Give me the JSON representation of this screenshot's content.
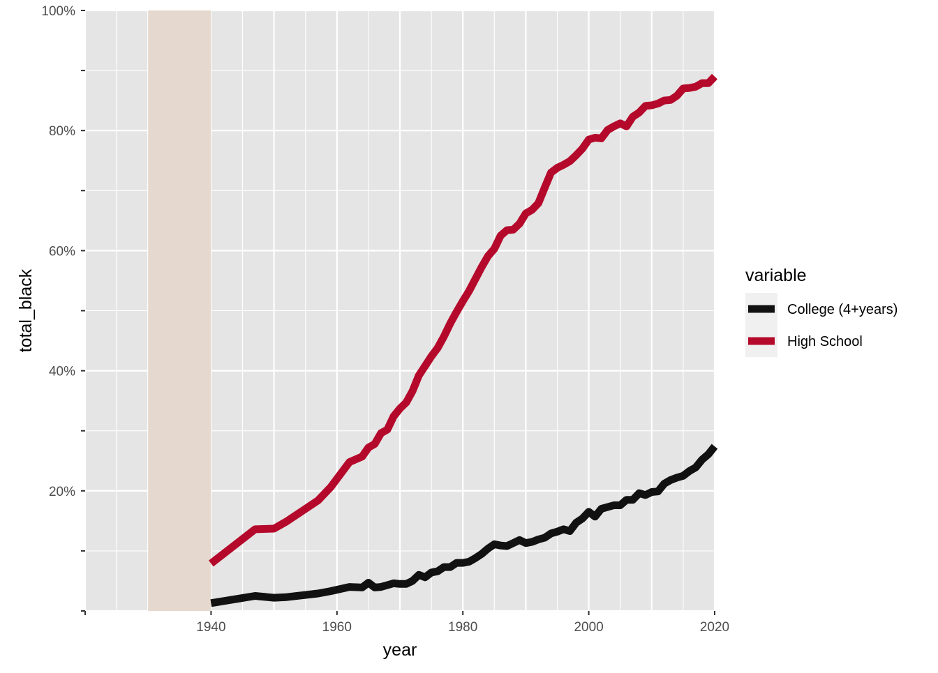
{
  "chart_data": {
    "type": "line",
    "xlabel": "year",
    "ylabel": "total_black",
    "xlim": [
      1920,
      2020
    ],
    "ylim": [
      0,
      100
    ],
    "x_ticks": [
      1940,
      1960,
      1980,
      2000,
      2020
    ],
    "y_ticks": [
      20,
      40,
      60,
      80,
      100
    ],
    "y_tick_labels": [
      "20%",
      "40%",
      "60%",
      "80%",
      "100%"
    ],
    "grid": true,
    "shaded_region": {
      "x_start": 1930,
      "x_end": 1940,
      "color": "#e5d9cf"
    },
    "legend": {
      "title": "variable",
      "placement": "right",
      "entries": [
        "College (4+years)",
        "High School"
      ]
    },
    "series": [
      {
        "name": "College (4+years)",
        "color": "#111111",
        "x": [
          1940,
          1947,
          1950,
          1952,
          1957,
          1959,
          1962,
          1964,
          1965,
          1966,
          1967,
          1968,
          1969,
          1970,
          1971,
          1972,
          1973,
          1974,
          1975,
          1976,
          1977,
          1978,
          1979,
          1980,
          1981,
          1982,
          1983,
          1984,
          1985,
          1986,
          1987,
          1988,
          1989,
          1990,
          1991,
          1992,
          1993,
          1994,
          1995,
          1996,
          1997,
          1998,
          1999,
          2000,
          2001,
          2002,
          2003,
          2004,
          2005,
          2006,
          2007,
          2008,
          2009,
          2010,
          2011,
          2012,
          2013,
          2014,
          2015,
          2016,
          2017,
          2018,
          2019,
          2020
        ],
        "y": [
          1.3,
          2.5,
          2.2,
          2.3,
          2.9,
          3.3,
          4.0,
          3.9,
          4.7,
          3.9,
          4.0,
          4.3,
          4.6,
          4.5,
          4.5,
          5.0,
          6.0,
          5.6,
          6.4,
          6.6,
          7.3,
          7.3,
          8.0,
          8.0,
          8.2,
          8.8,
          9.5,
          10.4,
          11.1,
          10.9,
          10.8,
          11.3,
          11.8,
          11.3,
          11.5,
          11.9,
          12.2,
          12.9,
          13.2,
          13.6,
          13.3,
          14.7,
          15.4,
          16.5,
          15.7,
          17.0,
          17.3,
          17.6,
          17.6,
          18.5,
          18.5,
          19.6,
          19.3,
          19.8,
          19.9,
          21.2,
          21.8,
          22.2,
          22.5,
          23.3,
          23.9,
          25.2,
          26.1,
          27.4
        ]
      },
      {
        "name": "High School",
        "color": "#b5092b",
        "x": [
          1940,
          1947,
          1950,
          1952,
          1957,
          1959,
          1962,
          1964,
          1965,
          1966,
          1967,
          1968,
          1969,
          1970,
          1971,
          1972,
          1973,
          1974,
          1975,
          1976,
          1977,
          1978,
          1979,
          1980,
          1981,
          1982,
          1983,
          1984,
          1985,
          1986,
          1987,
          1988,
          1989,
          1990,
          1991,
          1992,
          1993,
          1994,
          1995,
          1996,
          1997,
          1998,
          1999,
          2000,
          2001,
          2002,
          2003,
          2004,
          2005,
          2006,
          2007,
          2008,
          2009,
          2010,
          2011,
          2012,
          2013,
          2014,
          2015,
          2016,
          2017,
          2018,
          2019,
          2020
        ],
        "y": [
          7.9,
          13.6,
          13.7,
          14.9,
          18.4,
          20.6,
          24.8,
          25.7,
          27.2,
          27.8,
          29.6,
          30.2,
          32.4,
          33.7,
          34.7,
          36.6,
          39.2,
          40.8,
          42.4,
          43.8,
          45.7,
          47.9,
          49.8,
          51.6,
          53.3,
          55.3,
          57.3,
          59.1,
          60.3,
          62.5,
          63.4,
          63.5,
          64.5,
          66.2,
          66.8,
          67.9,
          70.5,
          73.0,
          73.8,
          74.3,
          74.9,
          75.9,
          77.0,
          78.5,
          78.8,
          78.7,
          80.1,
          80.7,
          81.2,
          80.7,
          82.3,
          83.0,
          84.1,
          84.2,
          84.5,
          85.0,
          85.1,
          85.8,
          87.0,
          87.1,
          87.3,
          87.9,
          87.9,
          89.0
        ]
      }
    ]
  }
}
